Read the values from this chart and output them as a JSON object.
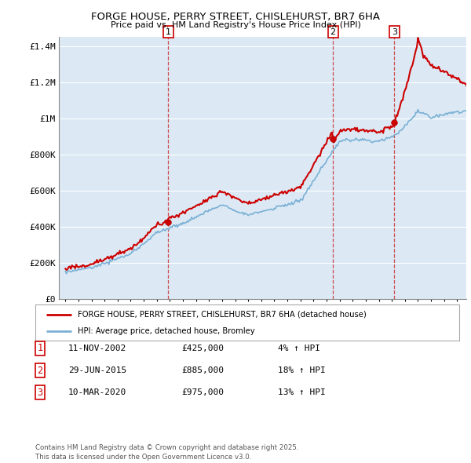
{
  "title": "FORGE HOUSE, PERRY STREET, CHISLEHURST, BR7 6HA",
  "subtitle": "Price paid vs. HM Land Registry's House Price Index (HPI)",
  "bg_color": "#dce9f5",
  "sale1": {
    "date": 2002.87,
    "price": 425000,
    "label": "1",
    "note": "11-NOV-2002",
    "amount": "£425,000",
    "hpi": "4% ↑ HPI"
  },
  "sale2": {
    "date": 2015.49,
    "price": 885000,
    "label": "2",
    "note": "29-JUN-2015",
    "amount": "£885,000",
    "hpi": "18% ↑ HPI"
  },
  "sale3": {
    "date": 2020.19,
    "price": 975000,
    "label": "3",
    "note": "10-MAR-2020",
    "amount": "£975,000",
    "hpi": "13% ↑ HPI"
  },
  "legend_label_red": "FORGE HOUSE, PERRY STREET, CHISLEHURST, BR7 6HA (detached house)",
  "legend_label_blue": "HPI: Average price, detached house, Bromley",
  "footer": "Contains HM Land Registry data © Crown copyright and database right 2025.\nThis data is licensed under the Open Government Licence v3.0.",
  "yticks": [
    0,
    200000,
    400000,
    600000,
    800000,
    1000000,
    1200000,
    1400000
  ],
  "ylim": [
    0,
    1450000
  ],
  "xlim_start": 1994.5,
  "xlim_end": 2025.7
}
